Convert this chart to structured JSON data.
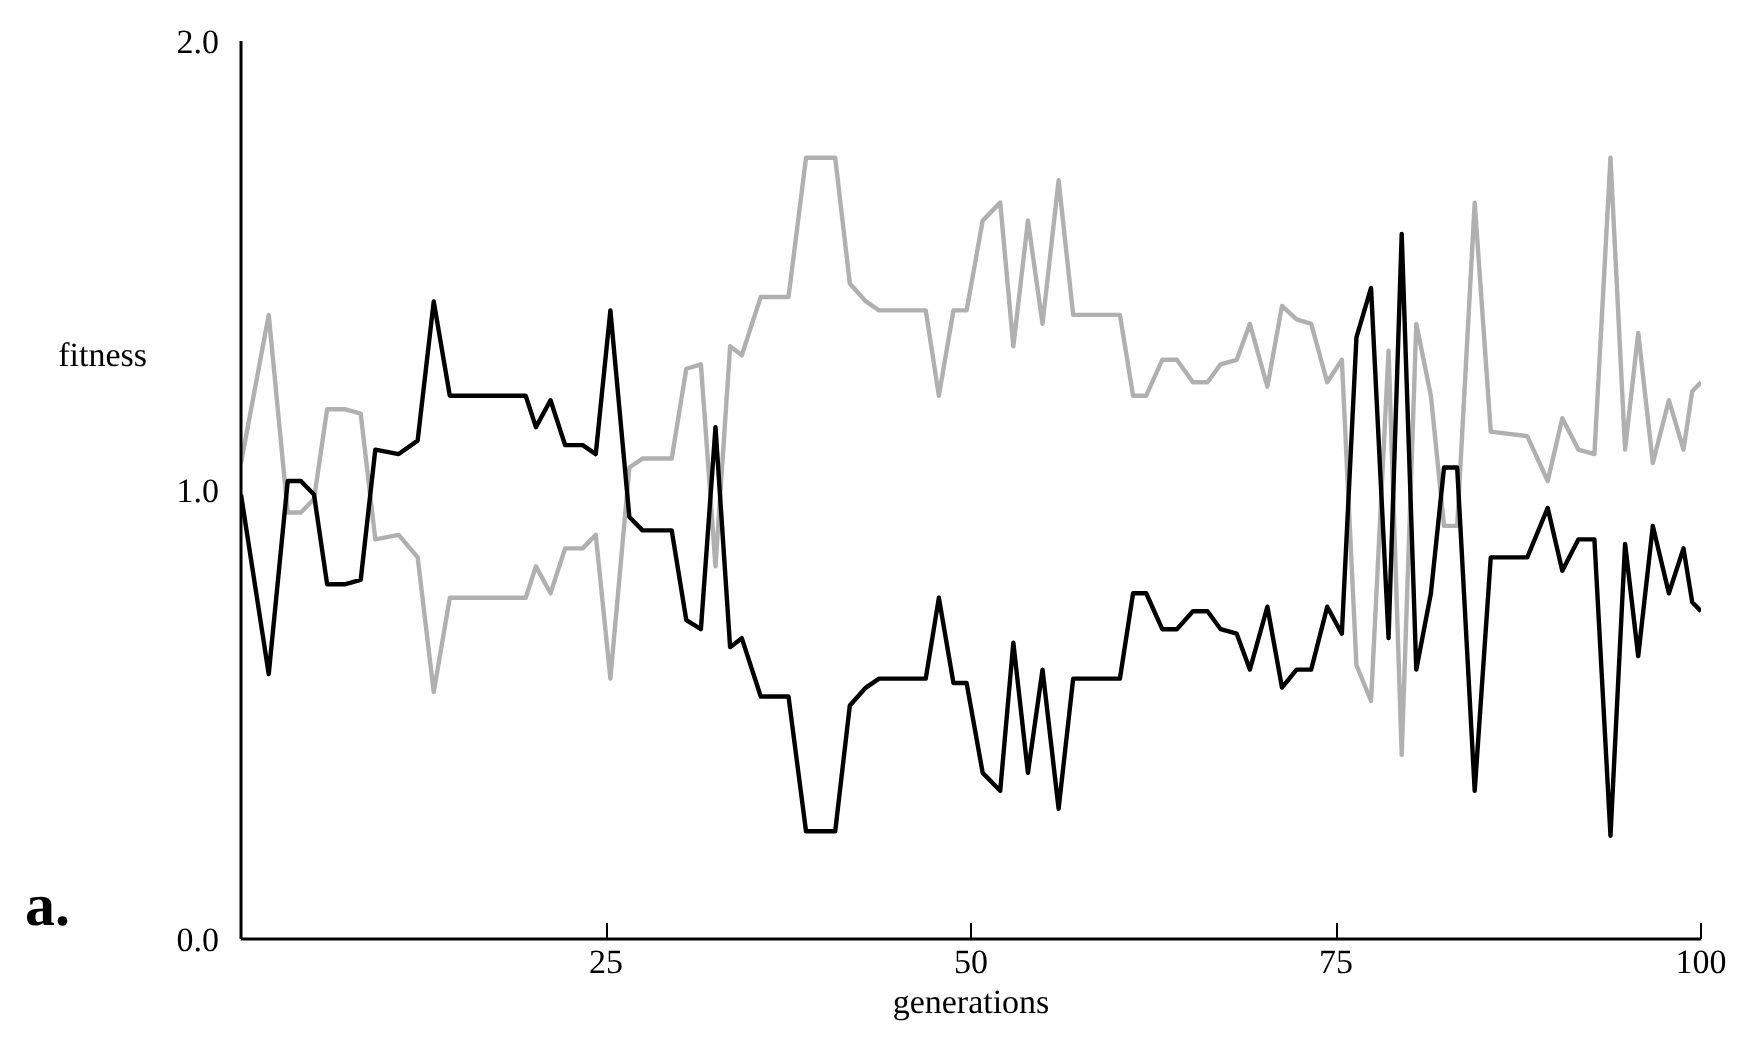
{
  "chart_data": {
    "type": "line",
    "xlabel": "generations",
    "ylabel": "fitness",
    "annotations": [
      "a."
    ],
    "x": [
      0,
      1.9,
      3.2,
      4.1,
      5.0,
      5.9,
      7.1,
      8.2,
      9.2,
      10.8,
      12.1,
      13.2,
      14.3,
      19.5,
      20.2,
      21.2,
      22.2,
      23.4,
      24.3,
      25.3,
      26.6,
      27.5,
      29.5,
      30.5,
      31.5,
      32.5,
      33.5,
      34.3,
      35.6,
      37.5,
      38.7,
      40.7,
      41.7,
      42.8,
      43.7,
      46.9,
      47.8,
      48.8,
      49.7,
      50.8,
      52.0,
      52.9,
      53.9,
      54.9,
      56.0,
      57.0,
      60.2,
      61.1,
      62.0,
      63.1,
      64.1,
      65.2,
      66.2,
      67.1,
      68.2,
      69.1,
      70.3,
      71.3,
      72.3,
      73.3,
      74.4,
      75.4,
      76.4,
      77.4,
      78.6,
      79.5,
      80.5,
      81.5,
      82.4,
      83.3,
      84.5,
      85.6,
      88.1,
      89.5,
      90.5,
      91.6,
      92.7,
      93.8,
      94.8,
      95.7,
      96.7,
      97.8,
      98.8,
      99.4,
      100
    ],
    "series": [
      {
        "color": "#b0b0b0",
        "values": [
          1.06,
          1.39,
          0.95,
          0.95,
          0.98,
          1.18,
          1.18,
          1.17,
          0.89,
          0.9,
          0.85,
          0.55,
          0.76,
          0.76,
          0.83,
          0.77,
          0.87,
          0.87,
          0.9,
          0.58,
          1.05,
          1.07,
          1.07,
          1.27,
          1.28,
          0.83,
          1.32,
          1.3,
          1.43,
          1.43,
          1.74,
          1.74,
          1.46,
          1.42,
          1.4,
          1.4,
          1.21,
          1.4,
          1.4,
          1.6,
          1.64,
          1.32,
          1.6,
          1.37,
          1.69,
          1.39,
          1.39,
          1.21,
          1.21,
          1.29,
          1.29,
          1.24,
          1.24,
          1.28,
          1.29,
          1.37,
          1.23,
          1.41,
          1.38,
          1.37,
          1.24,
          1.29,
          0.61,
          0.53,
          1.31,
          0.41,
          1.37,
          1.21,
          0.92,
          0.92,
          1.64,
          1.13,
          1.12,
          1.02,
          1.16,
          1.09,
          1.08,
          1.74,
          1.09,
          1.35,
          1.06,
          1.2,
          1.09,
          1.22,
          1.24
        ]
      },
      {
        "color": "#000000",
        "values": [
          0.99,
          0.59,
          1.02,
          1.02,
          0.99,
          0.79,
          0.79,
          0.8,
          1.09,
          1.08,
          1.11,
          1.42,
          1.21,
          1.21,
          1.14,
          1.2,
          1.1,
          1.1,
          1.08,
          1.4,
          0.94,
          0.91,
          0.91,
          0.71,
          0.69,
          1.14,
          0.65,
          0.67,
          0.54,
          0.54,
          0.24,
          0.24,
          0.52,
          0.56,
          0.58,
          0.58,
          0.76,
          0.57,
          0.57,
          0.37,
          0.33,
          0.66,
          0.37,
          0.6,
          0.29,
          0.58,
          0.58,
          0.77,
          0.77,
          0.69,
          0.69,
          0.73,
          0.73,
          0.69,
          0.68,
          0.6,
          0.74,
          0.56,
          0.6,
          0.6,
          0.74,
          0.68,
          1.34,
          1.45,
          0.67,
          1.57,
          0.6,
          0.77,
          1.05,
          1.05,
          0.33,
          0.85,
          0.85,
          0.96,
          0.82,
          0.89,
          0.89,
          0.23,
          0.88,
          0.63,
          0.92,
          0.77,
          0.87,
          0.75,
          0.73
        ]
      }
    ],
    "xlim": [
      0,
      100
    ],
    "ylim": [
      0,
      2
    ],
    "xticks": [
      25,
      50,
      75,
      100
    ],
    "yticks": [
      {
        "value": 0,
        "label": "0.0"
      },
      {
        "value": 1,
        "label": "1.0"
      },
      {
        "value": 2,
        "label": "2.0"
      }
    ],
    "grid": false,
    "marker": "none",
    "line_style": "solid"
  }
}
